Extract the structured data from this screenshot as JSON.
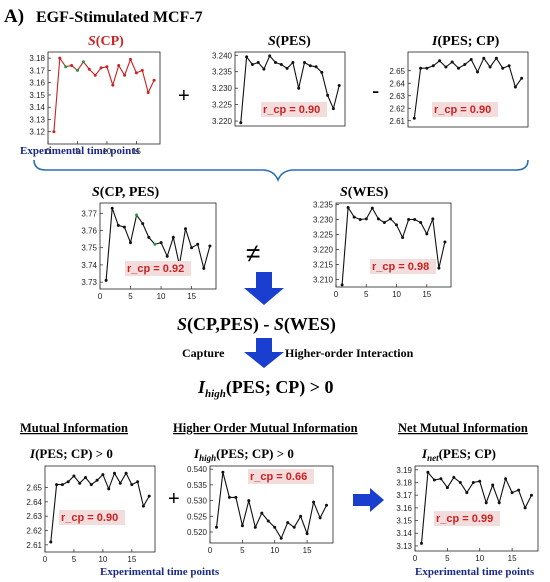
{
  "figure": {
    "panel_label": "A)",
    "title": "EGF-Stimulated MCF-7",
    "operators": {
      "plus": "+",
      "minus": "-",
      "neq": "≠",
      "plus2": "+"
    },
    "exp_time_label": "Experimental time points",
    "formula": {
      "s1": "S",
      "a1": "(CP,PES) - ",
      "s2": "S",
      "a2": "(WES)"
    },
    "capture": {
      "left": "Capture",
      "right": "Higher-order Interaction"
    },
    "ihigh_result": {
      "I": "I",
      "sub": "high",
      "rest": "(PES; CP) > 0"
    },
    "bottom_headers": {
      "mi": "Mutual Information",
      "homi": "Higher Order Mutual Information",
      "nmi": "Net Mutual Information"
    },
    "bottom_formulas": {
      "mi": {
        "I": "I",
        "rest": "(PES; CP) > 0"
      },
      "homi": {
        "I": "I",
        "sub": "high",
        "rest": "(PES; CP) > 0"
      },
      "nmi": {
        "I": "I",
        "sub": "net",
        "rest": "(PES; CP)"
      }
    },
    "colors": {
      "red": "#cc2222",
      "blue": "#1a3fd0",
      "bracket": "#2c6fb3",
      "rcp_bg": "#f2dcdc",
      "green": "#1e9a3c"
    }
  },
  "chart_data": [
    {
      "id": "scp",
      "type": "line",
      "title": {
        "sym": "S",
        "rest": "(CP)"
      },
      "x": [
        1,
        2,
        3,
        4,
        5,
        6,
        7,
        8,
        9,
        10,
        11,
        12,
        13,
        14,
        15,
        16,
        17,
        18
      ],
      "values": [
        3.12,
        3.18,
        3.173,
        3.174,
        3.17,
        3.177,
        3.171,
        3.166,
        3.172,
        3.173,
        3.158,
        3.174,
        3.166,
        3.179,
        3.168,
        3.17,
        3.152,
        3.162
      ],
      "ylim": [
        3.11,
        3.185
      ],
      "yticks": [
        "3.18",
        "3.17",
        "3.16",
        "3.15",
        "3.14",
        "3.13",
        "3.12"
      ],
      "xticks": [
        "0",
        "5",
        "10",
        "15"
      ],
      "line_color": "#cc2222"
    },
    {
      "id": "spes",
      "type": "line",
      "title": {
        "sym": "S",
        "rest": "(PES)"
      },
      "x": [
        1,
        2,
        3,
        4,
        5,
        6,
        7,
        8,
        9,
        10,
        11,
        12,
        13,
        14,
        15,
        16,
        17,
        18
      ],
      "values": [
        3.2195,
        3.2395,
        3.2372,
        3.2378,
        3.2358,
        3.2398,
        3.2378,
        3.2372,
        3.236,
        3.2378,
        3.23,
        3.2378,
        3.2368,
        3.2365,
        3.2348,
        3.2278,
        3.2238,
        3.2308
      ],
      "ylim": [
        3.2185,
        3.241
      ],
      "yticks": [
        "3.240",
        "3.235",
        "3.230",
        "3.225",
        "3.220"
      ],
      "xticks": [],
      "line_color": "#111111",
      "rcp": "r_cp = 0.90"
    },
    {
      "id": "ipescp",
      "type": "line",
      "title": {
        "sym": "I",
        "rest": "(PES; CP)"
      },
      "x": [
        1,
        2,
        3,
        4,
        5,
        6,
        7,
        8,
        9,
        10,
        11,
        12,
        13,
        14,
        15,
        16,
        17,
        18
      ],
      "values": [
        2.612,
        2.652,
        2.652,
        2.654,
        2.658,
        2.653,
        2.657,
        2.652,
        2.655,
        2.659,
        2.649,
        2.66,
        2.653,
        2.66,
        2.652,
        2.654,
        2.637,
        2.644
      ],
      "ylim": [
        2.605,
        2.665
      ],
      "yticks": [
        "2.65",
        "2.64",
        "2.63",
        "2.62",
        "2.61"
      ],
      "xticks": [],
      "line_color": "#111111",
      "rcp": "r_cp = 0.90"
    },
    {
      "id": "scppes",
      "type": "line",
      "title": {
        "sym": "S",
        "rest": "(CP, PES)"
      },
      "x": [
        1,
        2,
        3,
        4,
        5,
        6,
        7,
        8,
        9,
        10,
        11,
        12,
        13,
        14,
        15,
        16,
        17,
        18
      ],
      "values": [
        3.731,
        3.773,
        3.763,
        3.762,
        3.753,
        3.769,
        3.764,
        3.756,
        3.752,
        3.753,
        3.745,
        3.756,
        3.74,
        3.761,
        3.75,
        3.752,
        3.738,
        3.751
      ],
      "ylim": [
        3.726,
        3.776
      ],
      "yticks": [
        "3.77",
        "3.76",
        "3.75",
        "3.74",
        "3.73"
      ],
      "xticks": [
        "0",
        "5",
        "10",
        "15"
      ],
      "line_color": "#111111",
      "rcp": "r_cp = 0.92"
    },
    {
      "id": "swes",
      "type": "line",
      "title": {
        "sym": "S",
        "rest": "(WES)"
      },
      "x": [
        1,
        2,
        3,
        4,
        5,
        6,
        7,
        8,
        9,
        10,
        11,
        12,
        13,
        14,
        15,
        16,
        17,
        18
      ],
      "values": [
        3.2082,
        3.234,
        3.2308,
        3.23,
        3.2302,
        3.2338,
        3.2302,
        3.229,
        3.2302,
        3.2282,
        3.224,
        3.23,
        3.23,
        3.229,
        3.2252,
        3.2302,
        3.2138,
        3.2225
      ],
      "ylim": [
        3.2075,
        3.2355
      ],
      "yticks": [
        "3.235",
        "3.230",
        "3.225",
        "3.220",
        "3.215",
        "3.210"
      ],
      "xticks": [
        "0",
        "5",
        "10",
        "15"
      ],
      "line_color": "#111111",
      "rcp": "r_cp = 0.98"
    },
    {
      "id": "mi",
      "type": "line",
      "title": null,
      "x": [
        1,
        2,
        3,
        4,
        5,
        6,
        7,
        8,
        9,
        10,
        11,
        12,
        13,
        14,
        15,
        16,
        17,
        18
      ],
      "values": [
        2.612,
        2.652,
        2.652,
        2.654,
        2.658,
        2.653,
        2.657,
        2.652,
        2.655,
        2.659,
        2.649,
        2.66,
        2.653,
        2.66,
        2.652,
        2.654,
        2.637,
        2.644
      ],
      "ylim": [
        2.605,
        2.665
      ],
      "yticks": [
        "2.65",
        "2.64",
        "2.63",
        "2.62",
        "2.61"
      ],
      "xticks": [
        "0",
        "5",
        "10",
        "15"
      ],
      "line_color": "#111111",
      "rcp": "r_cp = 0.90"
    },
    {
      "id": "homi",
      "type": "line",
      "title": null,
      "x": [
        1,
        2,
        3,
        4,
        5,
        6,
        7,
        8,
        9,
        10,
        11,
        12,
        13,
        14,
        15,
        16,
        17,
        18
      ],
      "values": [
        0.5215,
        0.539,
        0.531,
        0.531,
        0.522,
        0.53,
        0.5215,
        0.526,
        0.5235,
        0.5215,
        0.518,
        0.523,
        0.5215,
        0.525,
        0.5195,
        0.5295,
        0.5245,
        0.5285
      ],
      "ylim": [
        0.5165,
        0.541
      ],
      "yticks": [
        "0.540",
        "0.535",
        "0.530",
        "0.525",
        "0.520"
      ],
      "xticks": [
        "0",
        "5",
        "10",
        "15"
      ],
      "line_color": "#111111",
      "rcp": "r_cp = 0.66"
    },
    {
      "id": "nmi",
      "type": "line",
      "title": null,
      "x": [
        1,
        2,
        3,
        4,
        5,
        6,
        7,
        8,
        9,
        10,
        11,
        12,
        13,
        14,
        15,
        16,
        17,
        18
      ],
      "values": [
        3.132,
        3.188,
        3.182,
        3.183,
        3.176,
        3.184,
        3.18,
        3.172,
        3.18,
        3.181,
        3.164,
        3.178,
        3.164,
        3.183,
        3.172,
        3.174,
        3.16,
        3.17
      ],
      "ylim": [
        3.126,
        3.193
      ],
      "yticks": [
        "3.19",
        "3.18",
        "3.17",
        "3.16",
        "3.15",
        "3.14",
        "3.13"
      ],
      "xticks": [
        "0",
        "5",
        "10",
        "15"
      ],
      "line_color": "#111111",
      "rcp": "r_cp = 0.99"
    }
  ]
}
